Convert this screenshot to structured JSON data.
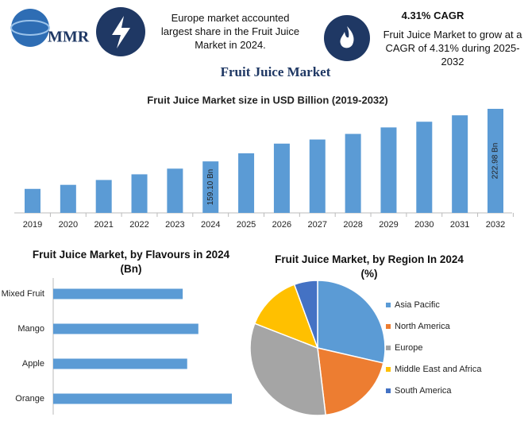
{
  "header": {
    "logo": "MMR",
    "info": "Europe market accounted largest share in the Fruit Juice Market in 2024.",
    "cagr_title": "4.31% CAGR",
    "cagr_text": "Fruit Juice Market to grow at a CAGR of 4.31% during 2025-2032"
  },
  "title": "Fruit Juice Market",
  "chart_data": [
    {
      "type": "bar",
      "title": "Fruit Juice Market size in USD Billion (2019-2032)",
      "categories": [
        "2019",
        "2020",
        "2021",
        "2022",
        "2023",
        "2024",
        "2025",
        "2026",
        "2027",
        "2028",
        "2029",
        "2030",
        "2031",
        "2032"
      ],
      "values": [
        125.7,
        130.6,
        136.5,
        143.4,
        150.3,
        159.1,
        168.9,
        180.7,
        185.7,
        192.5,
        200.4,
        207.3,
        215.1,
        222.98
      ],
      "value_labels": [
        null,
        null,
        null,
        null,
        null,
        "159.10 Bn",
        null,
        null,
        null,
        null,
        null,
        null,
        null,
        "222.98 Bn"
      ],
      "color": "#5b9bd5"
    },
    {
      "type": "hbar",
      "title": "Fruit Juice Market, by Flavours in 2024 (Bn)",
      "categories": [
        "Mixed Fruit",
        "Mango",
        "Apple",
        "Orange"
      ],
      "values": [
        29,
        32.5,
        30,
        40
      ],
      "color": "#5b9bd5"
    },
    {
      "type": "pie",
      "title": "Fruit Juice Market, by Region In 2024 (%)",
      "categories": [
        "Asia Pacific",
        "North America",
        "Europe",
        "Middle East and Africa",
        "South America"
      ],
      "values": [
        28.6,
        19.5,
        32.8,
        13.5,
        5.6
      ],
      "colors": [
        "#5b9bd5",
        "#ed7d31",
        "#a5a5a5",
        "#ffc000",
        "#4472c4"
      ]
    }
  ]
}
